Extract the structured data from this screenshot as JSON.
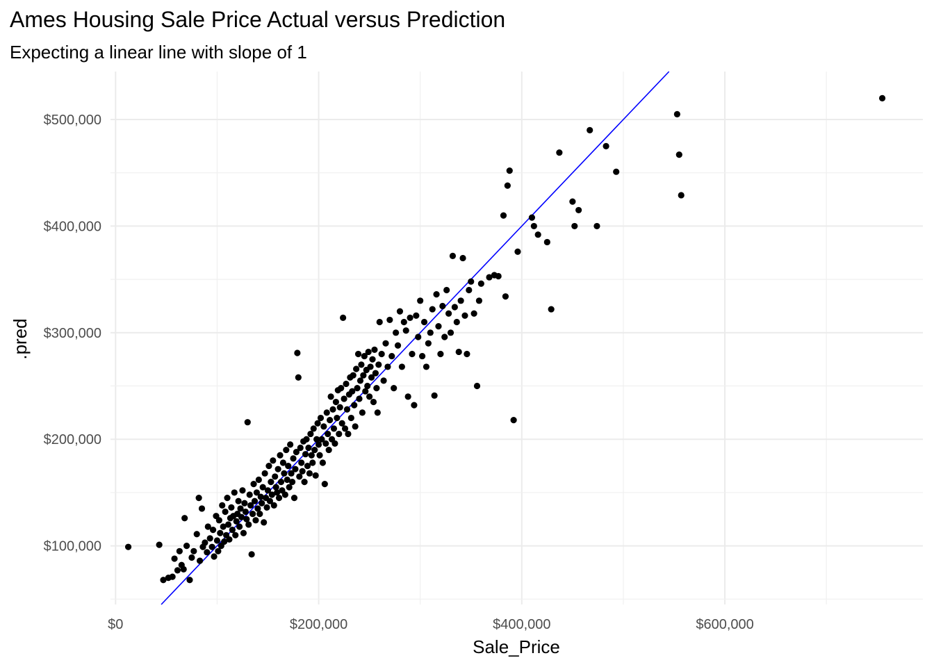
{
  "chart_data": {
    "type": "scatter",
    "title": "Ames Housing Sale Price Actual versus Prediction",
    "subtitle": "Expecting a linear line with slope of 1",
    "xlabel": "Sale_Price",
    "ylabel": ".pred",
    "xlim": [
      -5000,
      795000
    ],
    "ylim": [
      45000,
      545000
    ],
    "x_ticks": [
      0,
      200000,
      400000,
      600000
    ],
    "x_tick_labels": [
      "$0",
      "$200,000",
      "$400,000",
      "$600,000"
    ],
    "y_ticks": [
      100000,
      200000,
      300000,
      400000,
      500000
    ],
    "y_tick_labels": [
      "$100,000",
      "$200,000",
      "$300,000",
      "$400,000",
      "$500,000"
    ],
    "grid": true,
    "reference_line": {
      "slope": 1,
      "intercept": 0,
      "color": "#0000FF"
    },
    "point_color": "#000000",
    "points": [
      [
        12500,
        99000
      ],
      [
        43000,
        101000
      ],
      [
        47000,
        68000
      ],
      [
        52000,
        70000
      ],
      [
        56000,
        71000
      ],
      [
        58000,
        88000
      ],
      [
        61000,
        77000
      ],
      [
        63000,
        95000
      ],
      [
        65000,
        82000
      ],
      [
        67000,
        78000
      ],
      [
        68000,
        126000
      ],
      [
        70000,
        100000
      ],
      [
        73000,
        68000
      ],
      [
        75000,
        89000
      ],
      [
        77000,
        95000
      ],
      [
        80000,
        111000
      ],
      [
        82000,
        145000
      ],
      [
        83000,
        86000
      ],
      [
        85000,
        135000
      ],
      [
        86000,
        99000
      ],
      [
        88000,
        103000
      ],
      [
        90000,
        94000
      ],
      [
        91000,
        118000
      ],
      [
        93000,
        107000
      ],
      [
        95000,
        99000
      ],
      [
        96000,
        115000
      ],
      [
        97000,
        90000
      ],
      [
        99000,
        128000
      ],
      [
        100000,
        105000
      ],
      [
        101000,
        95000
      ],
      [
        102000,
        124000
      ],
      [
        103000,
        112000
      ],
      [
        104000,
        100000
      ],
      [
        105000,
        138000
      ],
      [
        106000,
        118000
      ],
      [
        107000,
        104000
      ],
      [
        108000,
        132000
      ],
      [
        109000,
        110000
      ],
      [
        110000,
        145000
      ],
      [
        111000,
        120000
      ],
      [
        112000,
        106000
      ],
      [
        113000,
        126000
      ],
      [
        114000,
        136000
      ],
      [
        115000,
        115000
      ],
      [
        116000,
        128000
      ],
      [
        117000,
        150000
      ],
      [
        118000,
        110000
      ],
      [
        119000,
        123000
      ],
      [
        120000,
        130000
      ],
      [
        121000,
        142000
      ],
      [
        122000,
        118000
      ],
      [
        123000,
        135000
      ],
      [
        124000,
        127000
      ],
      [
        125000,
        152000
      ],
      [
        126000,
        112000
      ],
      [
        127000,
        140000
      ],
      [
        128000,
        132000
      ],
      [
        129000,
        125000
      ],
      [
        130000,
        216000
      ],
      [
        131000,
        120000
      ],
      [
        132000,
        148000
      ],
      [
        133000,
        138000
      ],
      [
        134000,
        92000
      ],
      [
        135000,
        130000
      ],
      [
        136000,
        158000
      ],
      [
        137000,
        142000
      ],
      [
        138000,
        124000
      ],
      [
        139000,
        150000
      ],
      [
        140000,
        135000
      ],
      [
        141000,
        162000
      ],
      [
        142000,
        130000
      ],
      [
        143000,
        146000
      ],
      [
        144000,
        140000
      ],
      [
        145000,
        155000
      ],
      [
        146000,
        122000
      ],
      [
        147000,
        168000
      ],
      [
        148000,
        145000
      ],
      [
        149000,
        136000
      ],
      [
        150000,
        152000
      ],
      [
        151000,
        175000
      ],
      [
        152000,
        142000
      ],
      [
        153000,
        160000
      ],
      [
        154000,
        148000
      ],
      [
        155000,
        180000
      ],
      [
        156000,
        138000
      ],
      [
        157000,
        165000
      ],
      [
        158000,
        155000
      ],
      [
        159000,
        150000
      ],
      [
        160000,
        172000
      ],
      [
        161000,
        145000
      ],
      [
        162000,
        185000
      ],
      [
        163000,
        160000
      ],
      [
        164000,
        152000
      ],
      [
        165000,
        178000
      ],
      [
        166000,
        168000
      ],
      [
        167000,
        148000
      ],
      [
        168000,
        190000
      ],
      [
        169000,
        162000
      ],
      [
        170000,
        175000
      ],
      [
        171000,
        155000
      ],
      [
        172000,
        195000
      ],
      [
        173000,
        168000
      ],
      [
        174000,
        160000
      ],
      [
        175000,
        182000
      ],
      [
        176000,
        145000
      ],
      [
        177000,
        172000
      ],
      [
        178000,
        188000
      ],
      [
        179000,
        281000
      ],
      [
        180000,
        258000
      ],
      [
        181000,
        165000
      ],
      [
        182000,
        192000
      ],
      [
        183000,
        178000
      ],
      [
        184000,
        170000
      ],
      [
        185000,
        198000
      ],
      [
        186000,
        160000
      ],
      [
        187000,
        186000
      ],
      [
        188000,
        200000
      ],
      [
        189000,
        175000
      ],
      [
        190000,
        192000
      ],
      [
        191000,
        168000
      ],
      [
        192000,
        205000
      ],
      [
        193000,
        185000
      ],
      [
        194000,
        178000
      ],
      [
        195000,
        210000
      ],
      [
        196000,
        190000
      ],
      [
        197000,
        166000
      ],
      [
        198000,
        200000
      ],
      [
        199000,
        215000
      ],
      [
        200000,
        195000
      ],
      [
        201000,
        185000
      ],
      [
        202000,
        220000
      ],
      [
        203000,
        200000
      ],
      [
        204000,
        178000
      ],
      [
        205000,
        212000
      ],
      [
        206000,
        158000
      ],
      [
        207000,
        196000
      ],
      [
        208000,
        225000
      ],
      [
        209000,
        205000
      ],
      [
        210000,
        190000
      ],
      [
        211000,
        218000
      ],
      [
        212000,
        240000
      ],
      [
        213000,
        200000
      ],
      [
        214000,
        228000
      ],
      [
        215000,
        210000
      ],
      [
        216000,
        196000
      ],
      [
        217000,
        235000
      ],
      [
        218000,
        220000
      ],
      [
        219000,
        246000
      ],
      [
        220000,
        205000
      ],
      [
        221000,
        230000
      ],
      [
        222000,
        248000
      ],
      [
        223000,
        215000
      ],
      [
        224000,
        314000
      ],
      [
        225000,
        238000
      ],
      [
        226000,
        210000
      ],
      [
        227000,
        252000
      ],
      [
        228000,
        228000
      ],
      [
        229000,
        205000
      ],
      [
        230000,
        242000
      ],
      [
        231000,
        258000
      ],
      [
        232000,
        220000
      ],
      [
        233000,
        245000
      ],
      [
        234000,
        260000
      ],
      [
        235000,
        232000
      ],
      [
        236000,
        212000
      ],
      [
        237000,
        266000
      ],
      [
        238000,
        248000
      ],
      [
        239000,
        280000
      ],
      [
        240000,
        238000
      ],
      [
        241000,
        255000
      ],
      [
        242000,
        270000
      ],
      [
        243000,
        225000
      ],
      [
        244000,
        260000
      ],
      [
        245000,
        278000
      ],
      [
        246000,
        245000
      ],
      [
        247000,
        265000
      ],
      [
        248000,
        250000
      ],
      [
        249000,
        282000
      ],
      [
        250000,
        240000
      ],
      [
        251000,
        268000
      ],
      [
        252000,
        258000
      ],
      [
        253000,
        275000
      ],
      [
        254000,
        235000
      ],
      [
        255000,
        284000
      ],
      [
        256000,
        262000
      ],
      [
        257000,
        248000
      ],
      [
        258000,
        225000
      ],
      [
        259000,
        270000
      ],
      [
        260000,
        310000
      ],
      [
        262000,
        280000
      ],
      [
        264000,
        255000
      ],
      [
        266000,
        290000
      ],
      [
        268000,
        268000
      ],
      [
        270000,
        312000
      ],
      [
        272000,
        278000
      ],
      [
        274000,
        248000
      ],
      [
        276000,
        300000
      ],
      [
        278000,
        288000
      ],
      [
        280000,
        320000
      ],
      [
        282000,
        268000
      ],
      [
        284000,
        310000
      ],
      [
        286000,
        302000
      ],
      [
        288000,
        240000
      ],
      [
        290000,
        314000
      ],
      [
        292000,
        280000
      ],
      [
        294000,
        232000
      ],
      [
        296000,
        316000
      ],
      [
        298000,
        296000
      ],
      [
        300000,
        330000
      ],
      [
        302000,
        278000
      ],
      [
        304000,
        310000
      ],
      [
        306000,
        268000
      ],
      [
        308000,
        290000
      ],
      [
        310000,
        300000
      ],
      [
        312000,
        322000
      ],
      [
        314000,
        241000
      ],
      [
        316000,
        336000
      ],
      [
        318000,
        306000
      ],
      [
        320000,
        280000
      ],
      [
        322000,
        325000
      ],
      [
        324000,
        296000
      ],
      [
        326000,
        340000
      ],
      [
        328000,
        318000
      ],
      [
        330000,
        300000
      ],
      [
        332000,
        372000
      ],
      [
        334000,
        324000
      ],
      [
        336000,
        310000
      ],
      [
        338000,
        282000
      ],
      [
        340000,
        330000
      ],
      [
        342000,
        370000
      ],
      [
        344000,
        316000
      ],
      [
        346000,
        280000
      ],
      [
        348000,
        340000
      ],
      [
        350000,
        348000
      ],
      [
        353000,
        318000
      ],
      [
        356000,
        250000
      ],
      [
        358000,
        330000
      ],
      [
        360000,
        346000
      ],
      [
        368000,
        352000
      ],
      [
        373000,
        354000
      ],
      [
        377000,
        353000
      ],
      [
        382000,
        410000
      ],
      [
        384000,
        334000
      ],
      [
        386000,
        438000
      ],
      [
        388000,
        452000
      ],
      [
        392000,
        218000
      ],
      [
        396000,
        376000
      ],
      [
        410000,
        408000
      ],
      [
        412000,
        400000
      ],
      [
        416000,
        392000
      ],
      [
        425000,
        385000
      ],
      [
        429000,
        322000
      ],
      [
        437000,
        469000
      ],
      [
        450000,
        423000
      ],
      [
        452000,
        400000
      ],
      [
        456000,
        415000
      ],
      [
        467000,
        490000
      ],
      [
        474000,
        400000
      ],
      [
        483000,
        475000
      ],
      [
        493000,
        451000
      ],
      [
        553000,
        505000
      ],
      [
        555000,
        467000
      ],
      [
        557000,
        429000
      ],
      [
        755000,
        520000
      ]
    ]
  }
}
